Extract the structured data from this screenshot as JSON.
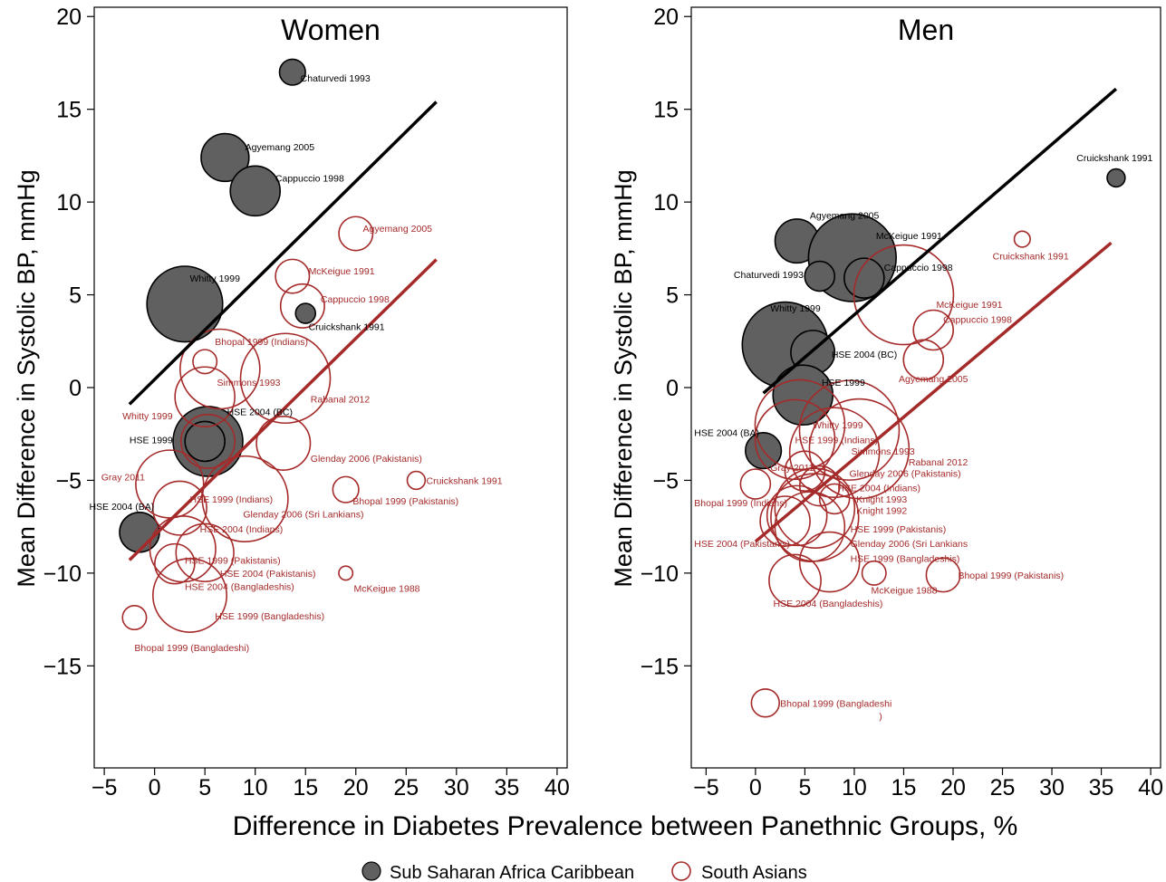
{
  "figure": {
    "xlabel": "Difference in Diabetes Prevalence between Panethnic Groups, %",
    "ylabel": "Mean Difference in Systolic BP, mmHg",
    "legend": {
      "placement": "bottom-center",
      "items": [
        {
          "label": "Sub Saharan Africa Caribbean",
          "style": "filled",
          "color": "#555555"
        },
        {
          "label": "South Asians",
          "style": "hollow",
          "color": "#a52a2a"
        }
      ]
    }
  },
  "colors": {
    "ssac_fill": "#606060",
    "ssac_text": "#000000",
    "sa_stroke": "#a52a2a",
    "ssac_line": "#000000",
    "sa_line": "#a52a2a"
  },
  "chart_data": [
    {
      "type": "scatter",
      "title": "Women",
      "xlim": [
        -6,
        41
      ],
      "ylim": [
        -20.5,
        20.5
      ],
      "xticks": [
        "-5",
        "0",
        "5",
        "10",
        "15",
        "20",
        "25",
        "30",
        "35",
        "40"
      ],
      "yticks": [
        "20",
        "15",
        "10",
        "5",
        "0",
        "-5",
        "-10",
        "-15"
      ],
      "grid": false,
      "series": [
        {
          "name": "Sub Saharan Africa Caribbean",
          "style": "filled",
          "points": [
            {
              "label": "Chaturvedi 1993",
              "x": 13.7,
              "y": 17.0,
              "size": 1.3
            },
            {
              "label": "Agyemang 2005",
              "x": 7.0,
              "y": 12.4,
              "size": 2.4
            },
            {
              "label": "Cappuccio 1998",
              "x": 10.0,
              "y": 10.6,
              "size": 2.5
            },
            {
              "label": "Whitty 1999",
              "x": 3.0,
              "y": 4.5,
              "size": 3.8
            },
            {
              "label": "Cruickshank 1991",
              "x": 15.0,
              "y": 4.0,
              "size": 1.0
            },
            {
              "label": "HSE 2004 (BC)",
              "x": 5.3,
              "y": -2.9,
              "size": 3.5
            },
            {
              "label": "HSE 1999",
              "x": 5.0,
              "y": -2.9,
              "size": 2.0
            },
            {
              "label": "HSE 2004 (BA)",
              "x": -1.5,
              "y": -7.8,
              "size": 2.0
            }
          ]
        },
        {
          "name": "South Asians",
          "style": "hollow",
          "points": [
            {
              "label": "Agyemang 2005",
              "x": 20.0,
              "y": 8.3,
              "size": 1.7
            },
            {
              "label": "McKeigue 1991",
              "x": 13.7,
              "y": 6.0,
              "size": 1.7
            },
            {
              "label": "Cappuccio 1998",
              "x": 14.7,
              "y": 4.4,
              "size": 2.2
            },
            {
              "label": "Bhopal 1999 (Indians)",
              "x": 5.0,
              "y": 1.4,
              "size": 1.2
            },
            {
              "label": "Bhopal 1999 (Indians)",
              "x": 6.5,
              "y": 1.0,
              "size": 4.0
            },
            {
              "label": "Simmons 1993",
              "x": 5.0,
              "y": -0.5,
              "size": 3.0
            },
            {
              "label": "Rabanal 2012",
              "x": 13.0,
              "y": 0.5,
              "size": 4.5
            },
            {
              "label": "Whitty 1999",
              "x": 5.3,
              "y": -2.9,
              "size": 2.7
            },
            {
              "label": "Glenday 2006 (Pakistanis)",
              "x": 12.8,
              "y": -3.0,
              "size": 2.7
            },
            {
              "label": "Cruickshank 1991",
              "x": 26.0,
              "y": -5.0,
              "size": 0.9
            },
            {
              "label": "Bhopal 1999 (Pakistanis)",
              "x": 19.0,
              "y": -5.5,
              "size": 1.3
            },
            {
              "label": "Gray 2011",
              "x": 1.5,
              "y": -5.2,
              "size": 3.4
            },
            {
              "label": "HSE 1999 (Indians)",
              "x": 2.5,
              "y": -6.5,
              "size": 2.7
            },
            {
              "label": "Glenday 2006 (Sri Lankians)",
              "x": 9.0,
              "y": -6.0,
              "size": 4.3
            },
            {
              "label": "HSE 2004 (Indians)",
              "x": 2.8,
              "y": -8.7,
              "size": 3.3
            },
            {
              "label": "HSE 1999 (Pakistanis)",
              "x": 2.0,
              "y": -9.5,
              "size": 2.0
            },
            {
              "label": "HSE 2004 (Pakistanis)",
              "x": 5.0,
              "y": -8.9,
              "size": 2.9
            },
            {
              "label": "HSE 2004 (Bangladeshis)",
              "x": 3.5,
              "y": -11.2,
              "size": 3.7
            },
            {
              "label": "McKeigue 1988",
              "x": 19.0,
              "y": -10.0,
              "size": 0.7
            },
            {
              "label": "Bhopal 1999 (Bangladeshi)",
              "x": -2.0,
              "y": -12.4,
              "size": 1.2
            }
          ]
        }
      ],
      "fit_lines": [
        {
          "series": "Sub Saharan Africa Caribbean",
          "x": [
            -2.5,
            28.0
          ],
          "y": [
            -0.9,
            15.4
          ]
        },
        {
          "series": "South Asians",
          "x": [
            -2.5,
            28.0
          ],
          "y": [
            -9.3,
            6.9
          ]
        }
      ]
    },
    {
      "type": "scatter",
      "title": "Men",
      "xlim": [
        -6.5,
        41
      ],
      "ylim": [
        -20.5,
        20.5
      ],
      "xticks": [
        "-5",
        "0",
        "5",
        "10",
        "15",
        "20",
        "25",
        "30",
        "35",
        "40"
      ],
      "yticks": [
        "20",
        "15",
        "10",
        "5",
        "0",
        "-5",
        "-10",
        "-15"
      ],
      "grid": false,
      "series": [
        {
          "name": "Sub Saharan Africa Caribbean",
          "style": "filled",
          "points": [
            {
              "label": "Cruickshank 1991",
              "x": 36.5,
              "y": 11.3,
              "size": 0.9
            },
            {
              "label": "Agyemang 2005",
              "x": 4.2,
              "y": 7.9,
              "size": 2.2
            },
            {
              "label": "McKeigue 1991",
              "x": 9.8,
              "y": 7.0,
              "size": 4.4
            },
            {
              "label": "Chaturvedi 1993",
              "x": 6.5,
              "y": 6.0,
              "size": 1.5
            },
            {
              "label": "Cappuccio 1998",
              "x": 11.0,
              "y": 5.9,
              "size": 2.0
            },
            {
              "label": "Whitty 1999",
              "x": 3.0,
              "y": 2.3,
              "size": 4.3
            },
            {
              "label": "HSE 2004 (BC)",
              "x": 5.8,
              "y": 1.9,
              "size": 2.2
            },
            {
              "label": "HSE 1999",
              "x": 4.8,
              "y": -0.4,
              "size": 3.0
            },
            {
              "label": "HSE 2004 (BA)",
              "x": 0.8,
              "y": -3.4,
              "size": 1.8
            }
          ]
        },
        {
          "name": "South Asians",
          "style": "hollow",
          "points": [
            {
              "label": "Cruickshank 1991",
              "x": 27.0,
              "y": 8.0,
              "size": 0.8
            },
            {
              "label": "McKeigue 1991",
              "x": 15.0,
              "y": 5.0,
              "size": 5.0
            },
            {
              "label": "Cappuccio 1998",
              "x": 18.0,
              "y": 3.1,
              "size": 2.0
            },
            {
              "label": "Agyemang 2005",
              "x": 17.0,
              "y": 1.5,
              "size": 2.0
            },
            {
              "label": "Whitty 1999",
              "x": 4.5,
              "y": -2.0,
              "size": 4.5
            },
            {
              "label": "HSE 1999 (Indians)",
              "x": 4.0,
              "y": -2.8,
              "size": 4.0
            },
            {
              "label": "HSE 1999 (Indians)",
              "x": 9.5,
              "y": -2.3,
              "size": 5.0
            },
            {
              "label": "Simmons 1993",
              "x": 10.5,
              "y": -3.3,
              "size": 5.0
            },
            {
              "label": "Rabanal 2012",
              "x": 8.0,
              "y": -3.5,
              "size": 4.5
            },
            {
              "label": "Gray 2011",
              "x": 5.0,
              "y": -4.5,
              "size": 2.0
            },
            {
              "label": "Glenday 2006 (Pakistanis)",
              "x": 6.5,
              "y": -5.3,
              "size": 2.0
            },
            {
              "label": "Bhopal 1999 (Indians)",
              "x": 0.0,
              "y": -5.2,
              "size": 1.5
            },
            {
              "label": "HSE 2004 (Indians)",
              "x": 6.0,
              "y": -6.5,
              "size": 4.0
            },
            {
              "label": "Knight 1993",
              "x": 8.0,
              "y": -6.0,
              "size": 1.5
            },
            {
              "label": "Knight  1992",
              "x": 6.0,
              "y": -7.0,
              "size": 4.4
            },
            {
              "label": "HSE 1999 (Pakistanis)",
              "x": 3.0,
              "y": -7.2,
              "size": 2.5
            },
            {
              "label": "HSE 2004 (Pakistanis)",
              "x": 4.2,
              "y": -6.9,
              "size": 3.0
            },
            {
              "label": "Glenday 2006 (Sri Lankians",
              "x": 5.5,
              "y": -7.5,
              "size": 3.5
            },
            {
              "label": "HSE 1999 (Bangladeshis)",
              "x": 7.5,
              "y": -9.4,
              "size": 3.0
            },
            {
              "label": "Bhopal 1999 (Pakistanis)",
              "x": 19.0,
              "y": -10.1,
              "size": 1.7
            },
            {
              "label": "McKeigue 1988",
              "x": 12.0,
              "y": -10.0,
              "size": 1.2
            },
            {
              "label": "HSE 2004 (Bangladeshis)",
              "x": 4.0,
              "y": -10.4,
              "size": 2.6
            },
            {
              "label": "Bhopal 1999 (Bangladeshi)",
              "x": 1.0,
              "y": -17.0,
              "size": 1.4
            }
          ]
        }
      ],
      "fit_lines": [
        {
          "series": "Sub Saharan Africa Caribbean",
          "x": [
            0.8,
            36.5
          ],
          "y": [
            -0.3,
            16.1
          ]
        },
        {
          "series": "South Asians",
          "x": [
            0.0,
            36.0
          ],
          "y": [
            -8.3,
            7.8
          ]
        }
      ]
    }
  ],
  "annotations": [
    [
      {
        "text": "Chaturvedi 1993",
        "x": 14.5,
        "y": 16.5,
        "color": "ssac"
      },
      {
        "text": "Agyemang 2005",
        "x": 9.0,
        "y": 12.8,
        "color": "ssac"
      },
      {
        "text": "Cappuccio 1998",
        "x": 12.0,
        "y": 11.1,
        "color": "ssac"
      },
      {
        "text": "Whitty 1999",
        "x": 3.5,
        "y": 5.7,
        "color": "ssac"
      },
      {
        "text": "Cruickshank 1991",
        "x": 15.3,
        "y": 3.1,
        "color": "ssac"
      },
      {
        "text": "HSE 2004 (BC)",
        "x": 7.2,
        "y": -1.5,
        "color": "ssac"
      },
      {
        "text": "HSE 1999",
        "x": -2.5,
        "y": -3.0,
        "color": "ssac"
      },
      {
        "text": "HSE 2004 (BA)",
        "x": -6.5,
        "y": -6.6,
        "color": "ssac"
      },
      {
        "text": "Agyemang 2005",
        "x": 20.7,
        "y": 8.4,
        "color": "sa"
      },
      {
        "text": "McKeigue 1991",
        "x": 15.3,
        "y": 6.1,
        "color": "sa"
      },
      {
        "text": "Cappuccio 1998",
        "x": 16.5,
        "y": 4.6,
        "color": "sa"
      },
      {
        "text": "Bhopal 1999 (Indians)",
        "x": 6.0,
        "y": 2.3,
        "color": "sa"
      },
      {
        "text": "Simmons 1993",
        "x": 6.2,
        "y": 0.1,
        "color": "sa"
      },
      {
        "text": "Rabanal 2012",
        "x": 15.5,
        "y": -0.8,
        "color": "sa"
      },
      {
        "text": "Whitty 1999",
        "x": -3.2,
        "y": -1.7,
        "color": "sa"
      },
      {
        "text": "Glenday 2006 (Pakistanis)",
        "x": 15.5,
        "y": -4.0,
        "color": "sa"
      },
      {
        "text": "Cruickshank 1991",
        "x": 27.0,
        "y": -5.2,
        "color": "sa"
      },
      {
        "text": "Gray 2011",
        "x": -5.3,
        "y": -5.0,
        "color": "sa"
      },
      {
        "text": "HSE 1999 (Indians)",
        "x": 3.5,
        "y": -6.2,
        "color": "sa"
      },
      {
        "text": "Glenday 2006 (Sri Lankians)",
        "x": 8.8,
        "y": -7.0,
        "color": "sa"
      },
      {
        "text": "Bhopal 1999 (Pakistanis)",
        "x": 19.7,
        "y": -6.3,
        "color": "sa"
      },
      {
        "text": "HSE 2004 (Indians)",
        "x": 4.5,
        "y": -7.8,
        "color": "sa"
      },
      {
        "text": "HSE 1999 (Pakistanis)",
        "x": 3.0,
        "y": -9.5,
        "color": "sa"
      },
      {
        "text": "HSE 2004 (Pakistanis)",
        "x": 6.5,
        "y": -10.2,
        "color": "sa"
      },
      {
        "text": "HSE 2004 (Bangladeshis)",
        "x": 3.0,
        "y": -10.9,
        "color": "sa"
      },
      {
        "text": "McKeigue 1988",
        "x": 19.8,
        "y": -11.0,
        "color": "sa"
      },
      {
        "text": "HSE 1999 (Bangladeshis)",
        "x": 6.0,
        "y": -12.5,
        "color": "sa"
      },
      {
        "text": "Bhopal 1999 (Bangladeshi)",
        "x": -2.0,
        "y": -14.2,
        "color": "sa"
      }
    ],
    [
      {
        "text": "Cruickshank 1991",
        "x": 32.5,
        "y": 12.2,
        "color": "ssac"
      },
      {
        "text": "Agyemang 2005",
        "x": 5.5,
        "y": 9.1,
        "color": "ssac"
      },
      {
        "text": "McKeigue 1991",
        "x": 12.2,
        "y": 8.0,
        "color": "ssac"
      },
      {
        "text": "Chaturvedi 1993",
        "x": -2.2,
        "y": 5.9,
        "color": "ssac"
      },
      {
        "text": "Cappuccio 1998",
        "x": 13.0,
        "y": 6.3,
        "color": "ssac"
      },
      {
        "text": "Whitty 1999",
        "x": 1.5,
        "y": 4.1,
        "color": "ssac"
      },
      {
        "text": "HSE 2004 (BC)",
        "x": 7.7,
        "y": 1.6,
        "color": "ssac"
      },
      {
        "text": "HSE 1999",
        "x": 6.7,
        "y": 0.1,
        "color": "ssac"
      },
      {
        "text": "HSE 2004 (BA)",
        "x": -6.2,
        "y": -2.6,
        "color": "ssac"
      },
      {
        "text": "Cruickshank 1991",
        "x": 24.0,
        "y": 6.9,
        "color": "sa"
      },
      {
        "text": "McKeigue 1991",
        "x": 18.3,
        "y": 4.3,
        "color": "sa"
      },
      {
        "text": "Cappuccio 1998",
        "x": 19.0,
        "y": 3.5,
        "color": "sa"
      },
      {
        "text": "Agyemang 2005",
        "x": 14.5,
        "y": 0.3,
        "color": "sa"
      },
      {
        "text": "Whitty 1999",
        "x": 5.8,
        "y": -2.2,
        "color": "sa"
      },
      {
        "text": "HSE 1999 (Indians)",
        "x": 4.0,
        "y": -3.0,
        "color": "sa"
      },
      {
        "text": "Simmons 1993",
        "x": 9.7,
        "y": -3.6,
        "color": "sa"
      },
      {
        "text": "Rabanal 2012",
        "x": 15.5,
        "y": -4.2,
        "color": "sa"
      },
      {
        "text": "Gray 2011",
        "x": 1.5,
        "y": -4.5,
        "color": "sa"
      },
      {
        "text": "Glenday 2006 (Pakistanis)",
        "x": 9.5,
        "y": -4.8,
        "color": "sa"
      },
      {
        "text": "HSE 2004 (Indians)",
        "x": 8.3,
        "y": -5.6,
        "color": "sa"
      },
      {
        "text": "Bhopal 1999 (Indians)",
        "x": -6.2,
        "y": -6.4,
        "color": "sa"
      },
      {
        "text": "Knight 1993",
        "x": 10.2,
        "y": -6.2,
        "color": "sa"
      },
      {
        "text": "Knight  1992",
        "x": 10.2,
        "y": -6.8,
        "color": "sa"
      },
      {
        "text": "HSE 1999 (Pakistanis)",
        "x": 9.6,
        "y": -7.8,
        "color": "sa"
      },
      {
        "text": "HSE 2004 (Pakistanis)",
        "x": -6.2,
        "y": -8.6,
        "color": "sa"
      },
      {
        "text": "Glenday 2006 (Sri Lankians",
        "x": 9.6,
        "y": -8.6,
        "color": "sa"
      },
      {
        "text": "HSE 1999 (Bangladeshis)",
        "x": 9.6,
        "y": -9.4,
        "color": "sa"
      },
      {
        "text": "Bhopal 1999 (Pakistanis)",
        "x": 20.5,
        "y": -10.3,
        "color": "sa"
      },
      {
        "text": "McKeigue 1988",
        "x": 11.7,
        "y": -11.1,
        "color": "sa"
      },
      {
        "text": "HSE 2004 (Bangladeshis)",
        "x": 1.8,
        "y": -11.8,
        "color": "sa"
      },
      {
        "text": "Bhopal 1999 (Bangladeshi",
        "x": 2.5,
        "y": -17.2,
        "color": "sa"
      },
      {
        "text": ")",
        "x": 12.5,
        "y": -17.9,
        "color": "sa"
      }
    ]
  ]
}
